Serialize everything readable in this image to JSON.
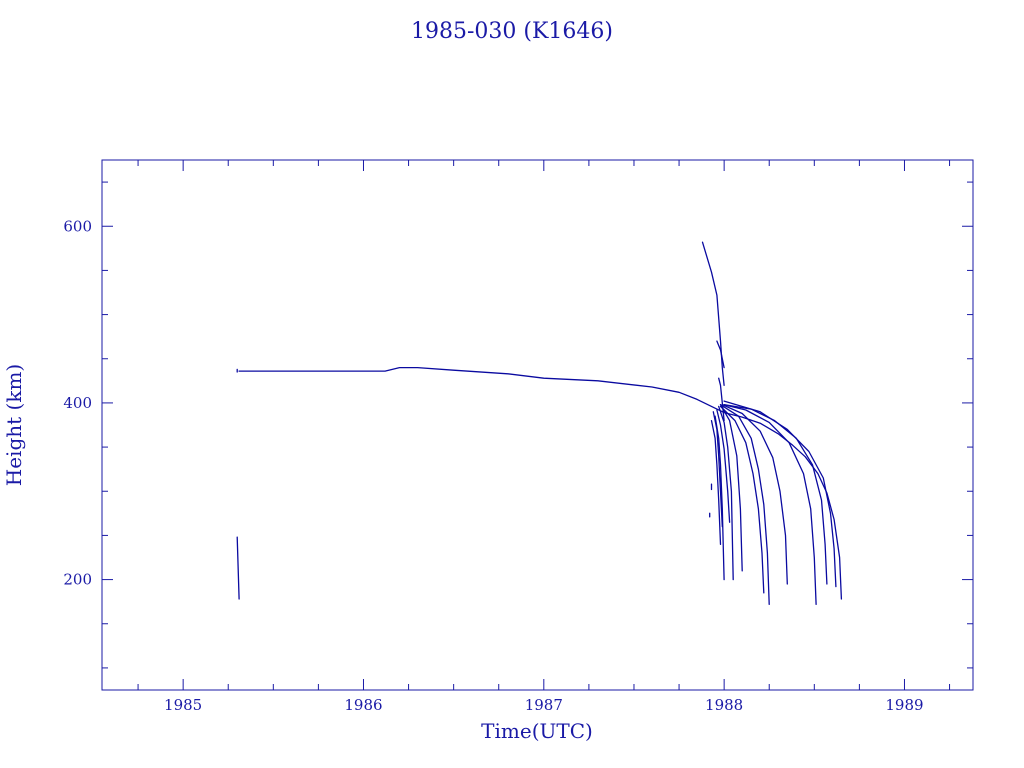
{
  "chart_data": {
    "type": "line",
    "title": "1985-030 (K1646)",
    "xlabel": "Time(UTC)",
    "ylabel": "Height (km)",
    "xlim": [
      1984.55,
      1989.38
    ],
    "ylim": [
      75,
      675
    ],
    "x_ticks": [
      1985,
      1986,
      1987,
      1988,
      1989
    ],
    "x_tick_labels": [
      "1985",
      "1986",
      "1987",
      "1988",
      "1989"
    ],
    "x_minor_step": 0.25,
    "y_ticks": [
      200,
      400,
      600
    ],
    "y_tick_labels": [
      "200",
      "400",
      "600"
    ],
    "y_minor_step": 50,
    "grid": false,
    "legend": "none",
    "color": "#0a0aa0",
    "series": [
      {
        "x": [
          1985.3,
          1985.3
        ],
        "y": [
          438,
          435
        ]
      },
      {
        "x": [
          1985.3,
          1985.31
        ],
        "y": [
          248,
          178
        ]
      },
      {
        "x": [
          1985.31,
          1985.6,
          1986.0,
          1986.12,
          1986.2,
          1986.3,
          1986.5,
          1986.8,
          1987.0,
          1987.3,
          1987.6,
          1987.75,
          1987.85,
          1987.93,
          1988.0,
          1988.1,
          1988.2,
          1988.3,
          1988.38,
          1988.45,
          1988.52,
          1988.57,
          1988.61,
          1988.64,
          1988.65
        ],
        "y": [
          436,
          436,
          436,
          436,
          440,
          440,
          437,
          433,
          428,
          425,
          418,
          412,
          404,
          396,
          389,
          384,
          377,
          365,
          352,
          339,
          320,
          298,
          268,
          225,
          178
        ]
      },
      {
        "x": [
          1987.88,
          1987.93,
          1987.96,
          1987.98,
          1987.99,
          1988.0
        ],
        "y": [
          582,
          548,
          522,
          470,
          440,
          420
        ]
      },
      {
        "x": [
          1987.96,
          1987.98,
          1988.0
        ],
        "y": [
          470,
          460,
          440
        ]
      },
      {
        "x": [
          1987.97,
          1987.98,
          1987.99,
          1988.0
        ],
        "y": [
          428,
          420,
          400,
          380
        ]
      },
      {
        "x": [
          1987.93,
          1987.95,
          1987.96,
          1987.97,
          1987.98
        ],
        "y": [
          380,
          360,
          330,
          290,
          240
        ]
      },
      {
        "x": [
          1987.94,
          1987.96,
          1987.97,
          1987.98,
          1987.99
        ],
        "y": [
          390,
          370,
          340,
          300,
          260
        ]
      },
      {
        "x": [
          1987.95,
          1987.97,
          1987.98,
          1987.99,
          1988.0
        ],
        "y": [
          385,
          360,
          330,
          280,
          200
        ]
      },
      {
        "x": [
          1987.96,
          1987.98,
          1988.0,
          1988.02,
          1988.03
        ],
        "y": [
          392,
          375,
          348,
          300,
          265
        ]
      },
      {
        "x": [
          1987.97,
          1988.0,
          1988.02,
          1988.04,
          1988.05
        ],
        "y": [
          396,
          378,
          350,
          300,
          200
        ]
      },
      {
        "x": [
          1987.98,
          1988.03,
          1988.07,
          1988.09,
          1988.1
        ],
        "y": [
          398,
          380,
          340,
          280,
          210
        ]
      },
      {
        "x": [
          1987.98,
          1988.06,
          1988.12,
          1988.16,
          1988.19,
          1988.21,
          1988.22
        ],
        "y": [
          396,
          380,
          355,
          320,
          280,
          230,
          185
        ]
      },
      {
        "x": [
          1987.98,
          1988.08,
          1988.15,
          1988.19,
          1988.22,
          1988.24,
          1988.25
        ],
        "y": [
          398,
          385,
          360,
          325,
          285,
          230,
          172
        ]
      },
      {
        "x": [
          1987.99,
          1988.1,
          1988.2,
          1988.27,
          1988.31,
          1988.34,
          1988.35
        ],
        "y": [
          398,
          388,
          368,
          338,
          300,
          250,
          195
        ]
      },
      {
        "x": [
          1988.0,
          1988.12,
          1988.25,
          1988.36,
          1988.44,
          1988.48,
          1988.5,
          1988.51
        ],
        "y": [
          398,
          392,
          378,
          355,
          320,
          280,
          225,
          172
        ]
      },
      {
        "x": [
          1988.0,
          1988.15,
          1988.28,
          1988.4,
          1988.49,
          1988.54,
          1988.56,
          1988.57
        ],
        "y": [
          398,
          393,
          380,
          360,
          330,
          290,
          240,
          195
        ]
      },
      {
        "x": [
          1988.0,
          1988.2,
          1988.35,
          1988.47,
          1988.55,
          1988.59,
          1988.61,
          1988.62
        ],
        "y": [
          402,
          390,
          370,
          345,
          315,
          275,
          235,
          192
        ]
      },
      {
        "x": [
          1987.93,
          1987.93
        ],
        "y": [
          308,
          302
        ]
      },
      {
        "x": [
          1987.92,
          1987.92
        ],
        "y": [
          275,
          271
        ]
      }
    ]
  }
}
